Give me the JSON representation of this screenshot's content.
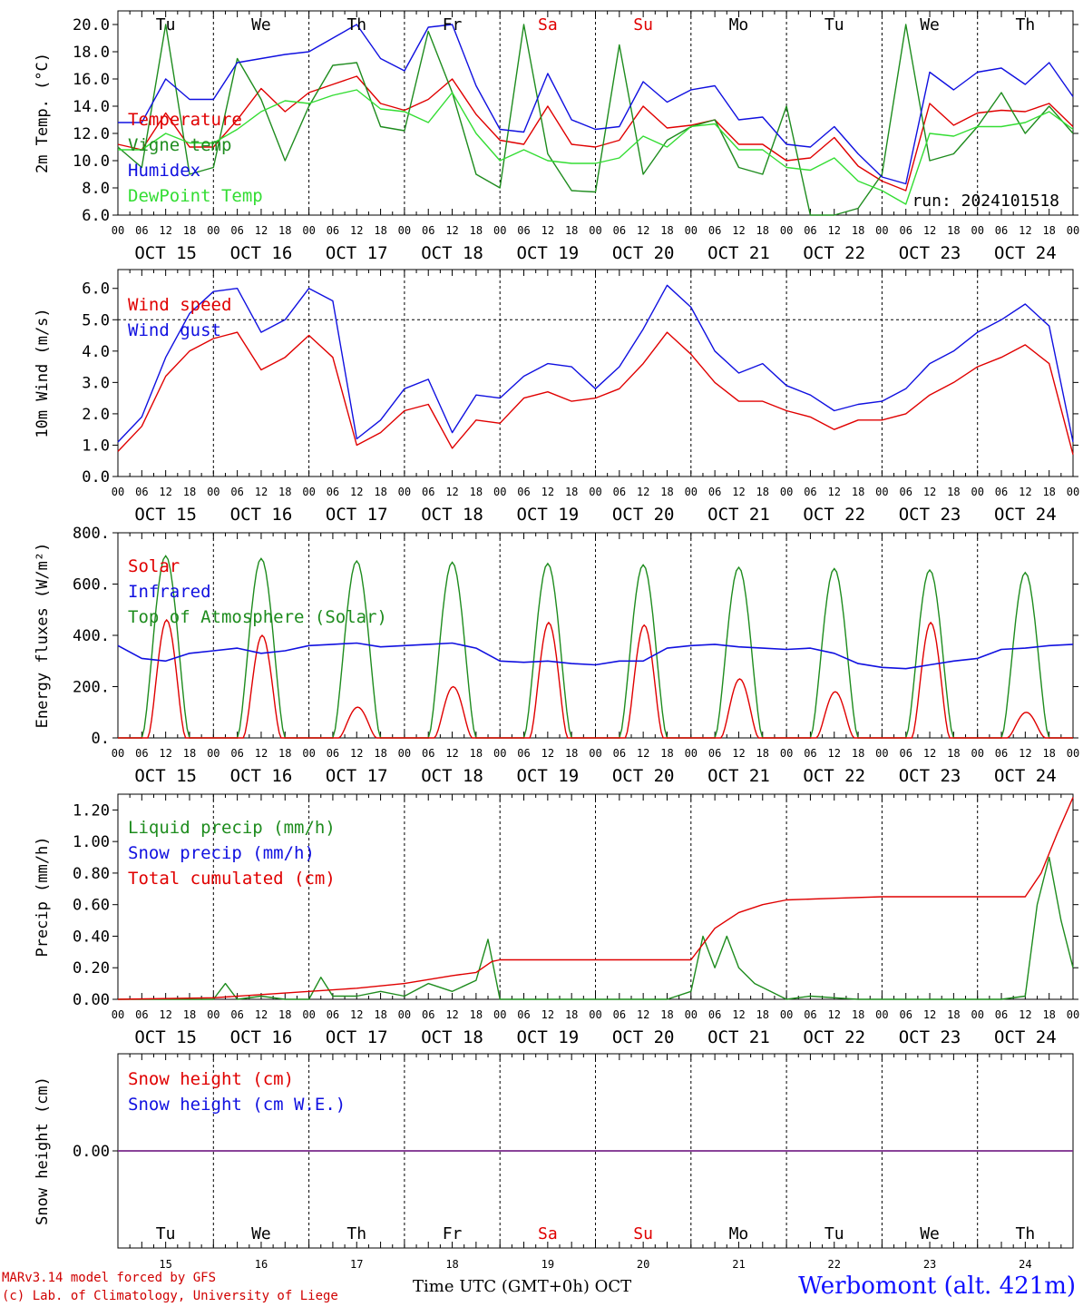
{
  "colors": {
    "red": "#e00000",
    "green": "#1e8c1e",
    "blue": "#1010e0",
    "lightgreen": "#33dd33",
    "purple": "#7a2a8a",
    "black": "#000000"
  },
  "days": [
    "15",
    "16",
    "17",
    "18",
    "19",
    "20",
    "21",
    "22",
    "23",
    "24"
  ],
  "weekdays": [
    {
      "label": "Tu",
      "weekend": false
    },
    {
      "label": "We",
      "weekend": false
    },
    {
      "label": "Th",
      "weekend": false
    },
    {
      "label": "Fr",
      "weekend": false
    },
    {
      "label": "Sa",
      "weekend": true
    },
    {
      "label": "Su",
      "weekend": true
    },
    {
      "label": "Mo",
      "weekend": false
    },
    {
      "label": "Tu",
      "weekend": false
    },
    {
      "label": "We",
      "weekend": false
    },
    {
      "label": "Th",
      "weekend": false
    }
  ],
  "date_labels": [
    "OCT 15",
    "OCT 16",
    "OCT 17",
    "OCT 18",
    "OCT 19",
    "OCT 20",
    "OCT 21",
    "OCT 22",
    "OCT 23",
    "OCT 24"
  ],
  "hour_labels": [
    "00",
    "06",
    "12",
    "18"
  ],
  "footer": {
    "credit_line1": "MARv3.14 model forced by GFS",
    "credit_line2": "(c) Lab. of Climatology, University of Liege",
    "time_axis": "Time UTC (GMT+0h) OCT",
    "station": "Werbomont (alt. 421m)",
    "run": "run: 2024101518"
  },
  "chart_data": [
    {
      "type": "line",
      "ylabel": "2m Temp. (°C)",
      "ylim": [
        6,
        21
      ],
      "yticks": [
        6,
        8,
        10,
        12,
        14,
        16,
        18,
        20
      ],
      "tick_labels": [
        "6.0",
        "8.0",
        "10.0",
        "12.0",
        "14.0",
        "16.0",
        "18.0",
        "20.0"
      ],
      "x_unit": "hours since Oct 15 00 UTC",
      "series": [
        {
          "name": "Temperature",
          "color": "red",
          "x": [
            0,
            6,
            12,
            18,
            24,
            30,
            36,
            42,
            48,
            54,
            60,
            66,
            72,
            78,
            84,
            90,
            96,
            102,
            108,
            114,
            120,
            126,
            132,
            138,
            144,
            150,
            156,
            162,
            168,
            174,
            180,
            186,
            192,
            198,
            204,
            210,
            216,
            222,
            228,
            234,
            240
          ],
          "y": [
            11.2,
            10.8,
            13.5,
            11.0,
            11.0,
            13.0,
            15.3,
            13.6,
            15.0,
            15.6,
            16.2,
            14.2,
            13.7,
            14.5,
            16.0,
            13.4,
            11.5,
            11.2,
            14.0,
            11.2,
            11.0,
            11.5,
            14.0,
            12.4,
            12.6,
            13.0,
            11.2,
            11.2,
            10.0,
            10.2,
            11.7,
            9.6,
            8.5,
            7.8,
            14.2,
            12.6,
            13.5,
            13.7,
            13.6,
            14.2,
            12.5
          ]
        },
        {
          "name": "Vigne temp",
          "color": "green",
          "x": [
            0,
            6,
            12,
            18,
            24,
            30,
            36,
            42,
            48,
            54,
            60,
            66,
            72,
            78,
            84,
            90,
            96,
            102,
            108,
            114,
            120,
            126,
            132,
            138,
            144,
            150,
            156,
            162,
            168,
            174,
            180,
            186,
            192,
            198,
            204,
            210,
            216,
            222,
            228,
            234,
            240
          ],
          "y": [
            11.0,
            9.5,
            20.0,
            9.0,
            9.5,
            17.5,
            14.5,
            10.0,
            14.0,
            17.0,
            17.2,
            12.5,
            12.2,
            19.5,
            15.0,
            9.0,
            8.0,
            20.0,
            10.5,
            7.8,
            7.7,
            18.5,
            9.0,
            11.5,
            12.5,
            13.0,
            9.5,
            9.0,
            14.0,
            5.0,
            5.5,
            6.5,
            9.0,
            20.0,
            10.0,
            10.5,
            12.5,
            15.0,
            12.0,
            14.0,
            12.0
          ]
        },
        {
          "name": "Humidex",
          "color": "blue",
          "x": [
            0,
            6,
            12,
            18,
            24,
            30,
            36,
            42,
            48,
            54,
            60,
            66,
            72,
            78,
            84,
            90,
            96,
            102,
            108,
            114,
            120,
            126,
            132,
            138,
            144,
            150,
            156,
            162,
            168,
            174,
            180,
            186,
            192,
            198,
            204,
            210,
            216,
            222,
            228,
            234,
            240
          ],
          "y": [
            12.8,
            12.8,
            16.0,
            14.5,
            14.5,
            17.2,
            17.5,
            17.8,
            18.0,
            19.0,
            20.0,
            17.5,
            16.6,
            19.8,
            20.0,
            15.5,
            12.3,
            12.1,
            16.4,
            13.0,
            12.3,
            12.5,
            15.8,
            14.3,
            15.2,
            15.5,
            13.0,
            13.2,
            11.2,
            11.0,
            12.5,
            10.5,
            8.8,
            8.3,
            16.5,
            15.2,
            16.5,
            16.8,
            15.6,
            17.2,
            14.7
          ]
        },
        {
          "name": "DewPoint Temp",
          "color": "lightgreen",
          "x": [
            0,
            6,
            12,
            18,
            24,
            30,
            36,
            42,
            48,
            54,
            60,
            66,
            72,
            78,
            84,
            90,
            96,
            102,
            108,
            114,
            120,
            126,
            132,
            138,
            144,
            150,
            156,
            162,
            168,
            174,
            180,
            186,
            192,
            198,
            204,
            210,
            216,
            222,
            228,
            234,
            240
          ],
          "y": [
            10.8,
            10.8,
            12.0,
            11.3,
            11.3,
            12.3,
            13.6,
            14.4,
            14.2,
            14.8,
            15.2,
            13.8,
            13.6,
            12.8,
            15.0,
            12.0,
            10.0,
            10.8,
            10.0,
            9.8,
            9.8,
            10.2,
            11.8,
            11.0,
            12.5,
            12.7,
            10.8,
            10.8,
            9.5,
            9.3,
            10.2,
            8.5,
            7.8,
            6.8,
            12.0,
            11.8,
            12.5,
            12.5,
            12.8,
            13.6,
            12.3
          ]
        }
      ]
    },
    {
      "type": "line",
      "ylabel": "10m Wind (m/s)",
      "ylim": [
        0,
        6.6
      ],
      "yticks": [
        0,
        1,
        2,
        3,
        4,
        5,
        6
      ],
      "tick_labels": [
        "0.0",
        "1.0",
        "2.0",
        "3.0",
        "4.0",
        "5.0",
        "6.0"
      ],
      "reference_line": 5,
      "series": [
        {
          "name": "Wind speed",
          "color": "red",
          "x": [
            0,
            6,
            12,
            18,
            24,
            30,
            36,
            42,
            48,
            54,
            60,
            66,
            72,
            78,
            84,
            90,
            96,
            102,
            108,
            114,
            120,
            126,
            132,
            138,
            144,
            150,
            156,
            162,
            168,
            174,
            180,
            186,
            192,
            198,
            204,
            210,
            216,
            222,
            228,
            234,
            240
          ],
          "y": [
            0.8,
            1.6,
            3.2,
            4.0,
            4.4,
            4.6,
            3.4,
            3.8,
            4.5,
            3.8,
            1.0,
            1.4,
            2.1,
            2.3,
            0.9,
            1.8,
            1.7,
            2.5,
            2.7,
            2.4,
            2.5,
            2.8,
            3.6,
            4.6,
            3.9,
            3.0,
            2.4,
            2.4,
            2.1,
            1.9,
            1.5,
            1.8,
            1.8,
            2.0,
            2.6,
            3.0,
            3.5,
            3.8,
            4.2,
            3.6,
            0.7
          ]
        },
        {
          "name": "Wind gust",
          "color": "blue",
          "x": [
            0,
            6,
            12,
            18,
            24,
            30,
            36,
            42,
            48,
            54,
            60,
            66,
            72,
            78,
            84,
            90,
            96,
            102,
            108,
            114,
            120,
            126,
            132,
            138,
            144,
            150,
            156,
            162,
            168,
            174,
            180,
            186,
            192,
            198,
            204,
            210,
            216,
            222,
            228,
            234,
            240
          ],
          "y": [
            1.1,
            1.9,
            3.8,
            5.2,
            5.9,
            6.0,
            4.6,
            5.0,
            6.0,
            5.6,
            1.2,
            1.8,
            2.8,
            3.1,
            1.4,
            2.6,
            2.5,
            3.2,
            3.6,
            3.5,
            2.8,
            3.5,
            4.7,
            6.1,
            5.4,
            4.0,
            3.3,
            3.6,
            2.9,
            2.6,
            2.1,
            2.3,
            2.4,
            2.8,
            3.6,
            4.0,
            4.6,
            5.0,
            5.5,
            4.8,
            1.1
          ]
        }
      ]
    },
    {
      "type": "line",
      "ylabel": "Energy fluxes (W/m²)",
      "ylim": [
        0,
        800
      ],
      "yticks": [
        0,
        200,
        400,
        600,
        800
      ],
      "tick_labels": [
        "0.",
        "200.",
        "400.",
        "600.",
        "800."
      ],
      "daily_peaks": {
        "solar": [
          460,
          400,
          120,
          200,
          450,
          440,
          230,
          180,
          450,
          100
        ],
        "top_of_atmosphere": [
          710,
          700,
          690,
          685,
          680,
          675,
          665,
          660,
          655,
          645
        ]
      },
      "series": [
        {
          "name": "Solar",
          "color": "red"
        },
        {
          "name": "Infrared",
          "color": "blue",
          "x": [
            0,
            6,
            12,
            18,
            24,
            30,
            36,
            42,
            48,
            54,
            60,
            66,
            72,
            78,
            84,
            90,
            96,
            102,
            108,
            114,
            120,
            126,
            132,
            138,
            144,
            150,
            156,
            162,
            168,
            174,
            180,
            186,
            192,
            198,
            204,
            210,
            216,
            222,
            228,
            234,
            240
          ],
          "y": [
            360,
            310,
            300,
            330,
            340,
            350,
            330,
            340,
            360,
            365,
            370,
            355,
            360,
            365,
            370,
            350,
            300,
            295,
            300,
            290,
            285,
            300,
            300,
            350,
            360,
            365,
            355,
            350,
            345,
            350,
            330,
            290,
            275,
            270,
            285,
            300,
            310,
            345,
            350,
            360,
            365
          ]
        },
        {
          "name": "Top of Atmosphere (Solar)",
          "color": "green"
        }
      ]
    },
    {
      "type": "line",
      "ylabel": "Precip (mm/h)",
      "ylim": [
        0,
        1.3
      ],
      "yticks": [
        0,
        0.2,
        0.4,
        0.6,
        0.8,
        1.0,
        1.2
      ],
      "tick_labels": [
        "0.00",
        "0.20",
        "0.40",
        "0.60",
        "0.80",
        "1.00",
        "1.20"
      ],
      "series": [
        {
          "name": "Liquid precip (mm/h)",
          "color": "green",
          "x": [
            0,
            6,
            12,
            18,
            24,
            27,
            30,
            36,
            42,
            48,
            51,
            54,
            60,
            66,
            72,
            78,
            84,
            90,
            93,
            96,
            102,
            108,
            114,
            120,
            126,
            132,
            138,
            144,
            147,
            150,
            153,
            156,
            160,
            164,
            168,
            174,
            180,
            186,
            192,
            198,
            204,
            210,
            216,
            222,
            228,
            231,
            234,
            237,
            240
          ],
          "y": [
            0,
            0,
            0,
            0,
            0,
            0.1,
            0,
            0.02,
            0,
            0,
            0.14,
            0.02,
            0.02,
            0.05,
            0.02,
            0.1,
            0.05,
            0.12,
            0.38,
            0,
            0,
            0,
            0,
            0,
            0,
            0,
            0,
            0.05,
            0.4,
            0.2,
            0.4,
            0.2,
            0.1,
            0.05,
            0,
            0.02,
            0.01,
            0,
            0,
            0,
            0,
            0,
            0,
            0,
            0.02,
            0.6,
            0.9,
            0.5,
            0.2
          ]
        },
        {
          "name": "Snow precip (mm/h)",
          "color": "blue"
        },
        {
          "name": "Total cumulated (cm)",
          "color": "red",
          "x": [
            0,
            24,
            36,
            48,
            60,
            72,
            84,
            90,
            94,
            96,
            108,
            120,
            132,
            144,
            147,
            150,
            156,
            162,
            168,
            180,
            192,
            204,
            216,
            228,
            232,
            236,
            240
          ],
          "y": [
            0,
            0.01,
            0.03,
            0.05,
            0.07,
            0.1,
            0.15,
            0.17,
            0.24,
            0.25,
            0.25,
            0.25,
            0.25,
            0.25,
            0.35,
            0.45,
            0.55,
            0.6,
            0.63,
            0.64,
            0.65,
            0.65,
            0.65,
            0.65,
            0.8,
            1.05,
            1.28
          ]
        }
      ]
    },
    {
      "type": "line",
      "ylabel": "Snow height (cm)",
      "tick_labels": [
        "0.00"
      ],
      "series": [
        {
          "name": "Snow height (cm)",
          "color": "red",
          "x": [
            0,
            240
          ],
          "y": [
            0,
            0
          ]
        },
        {
          "name": "Snow height (cm W.E.)",
          "color": "blue",
          "x": [
            0,
            240
          ],
          "y": [
            0,
            0
          ]
        }
      ]
    }
  ]
}
